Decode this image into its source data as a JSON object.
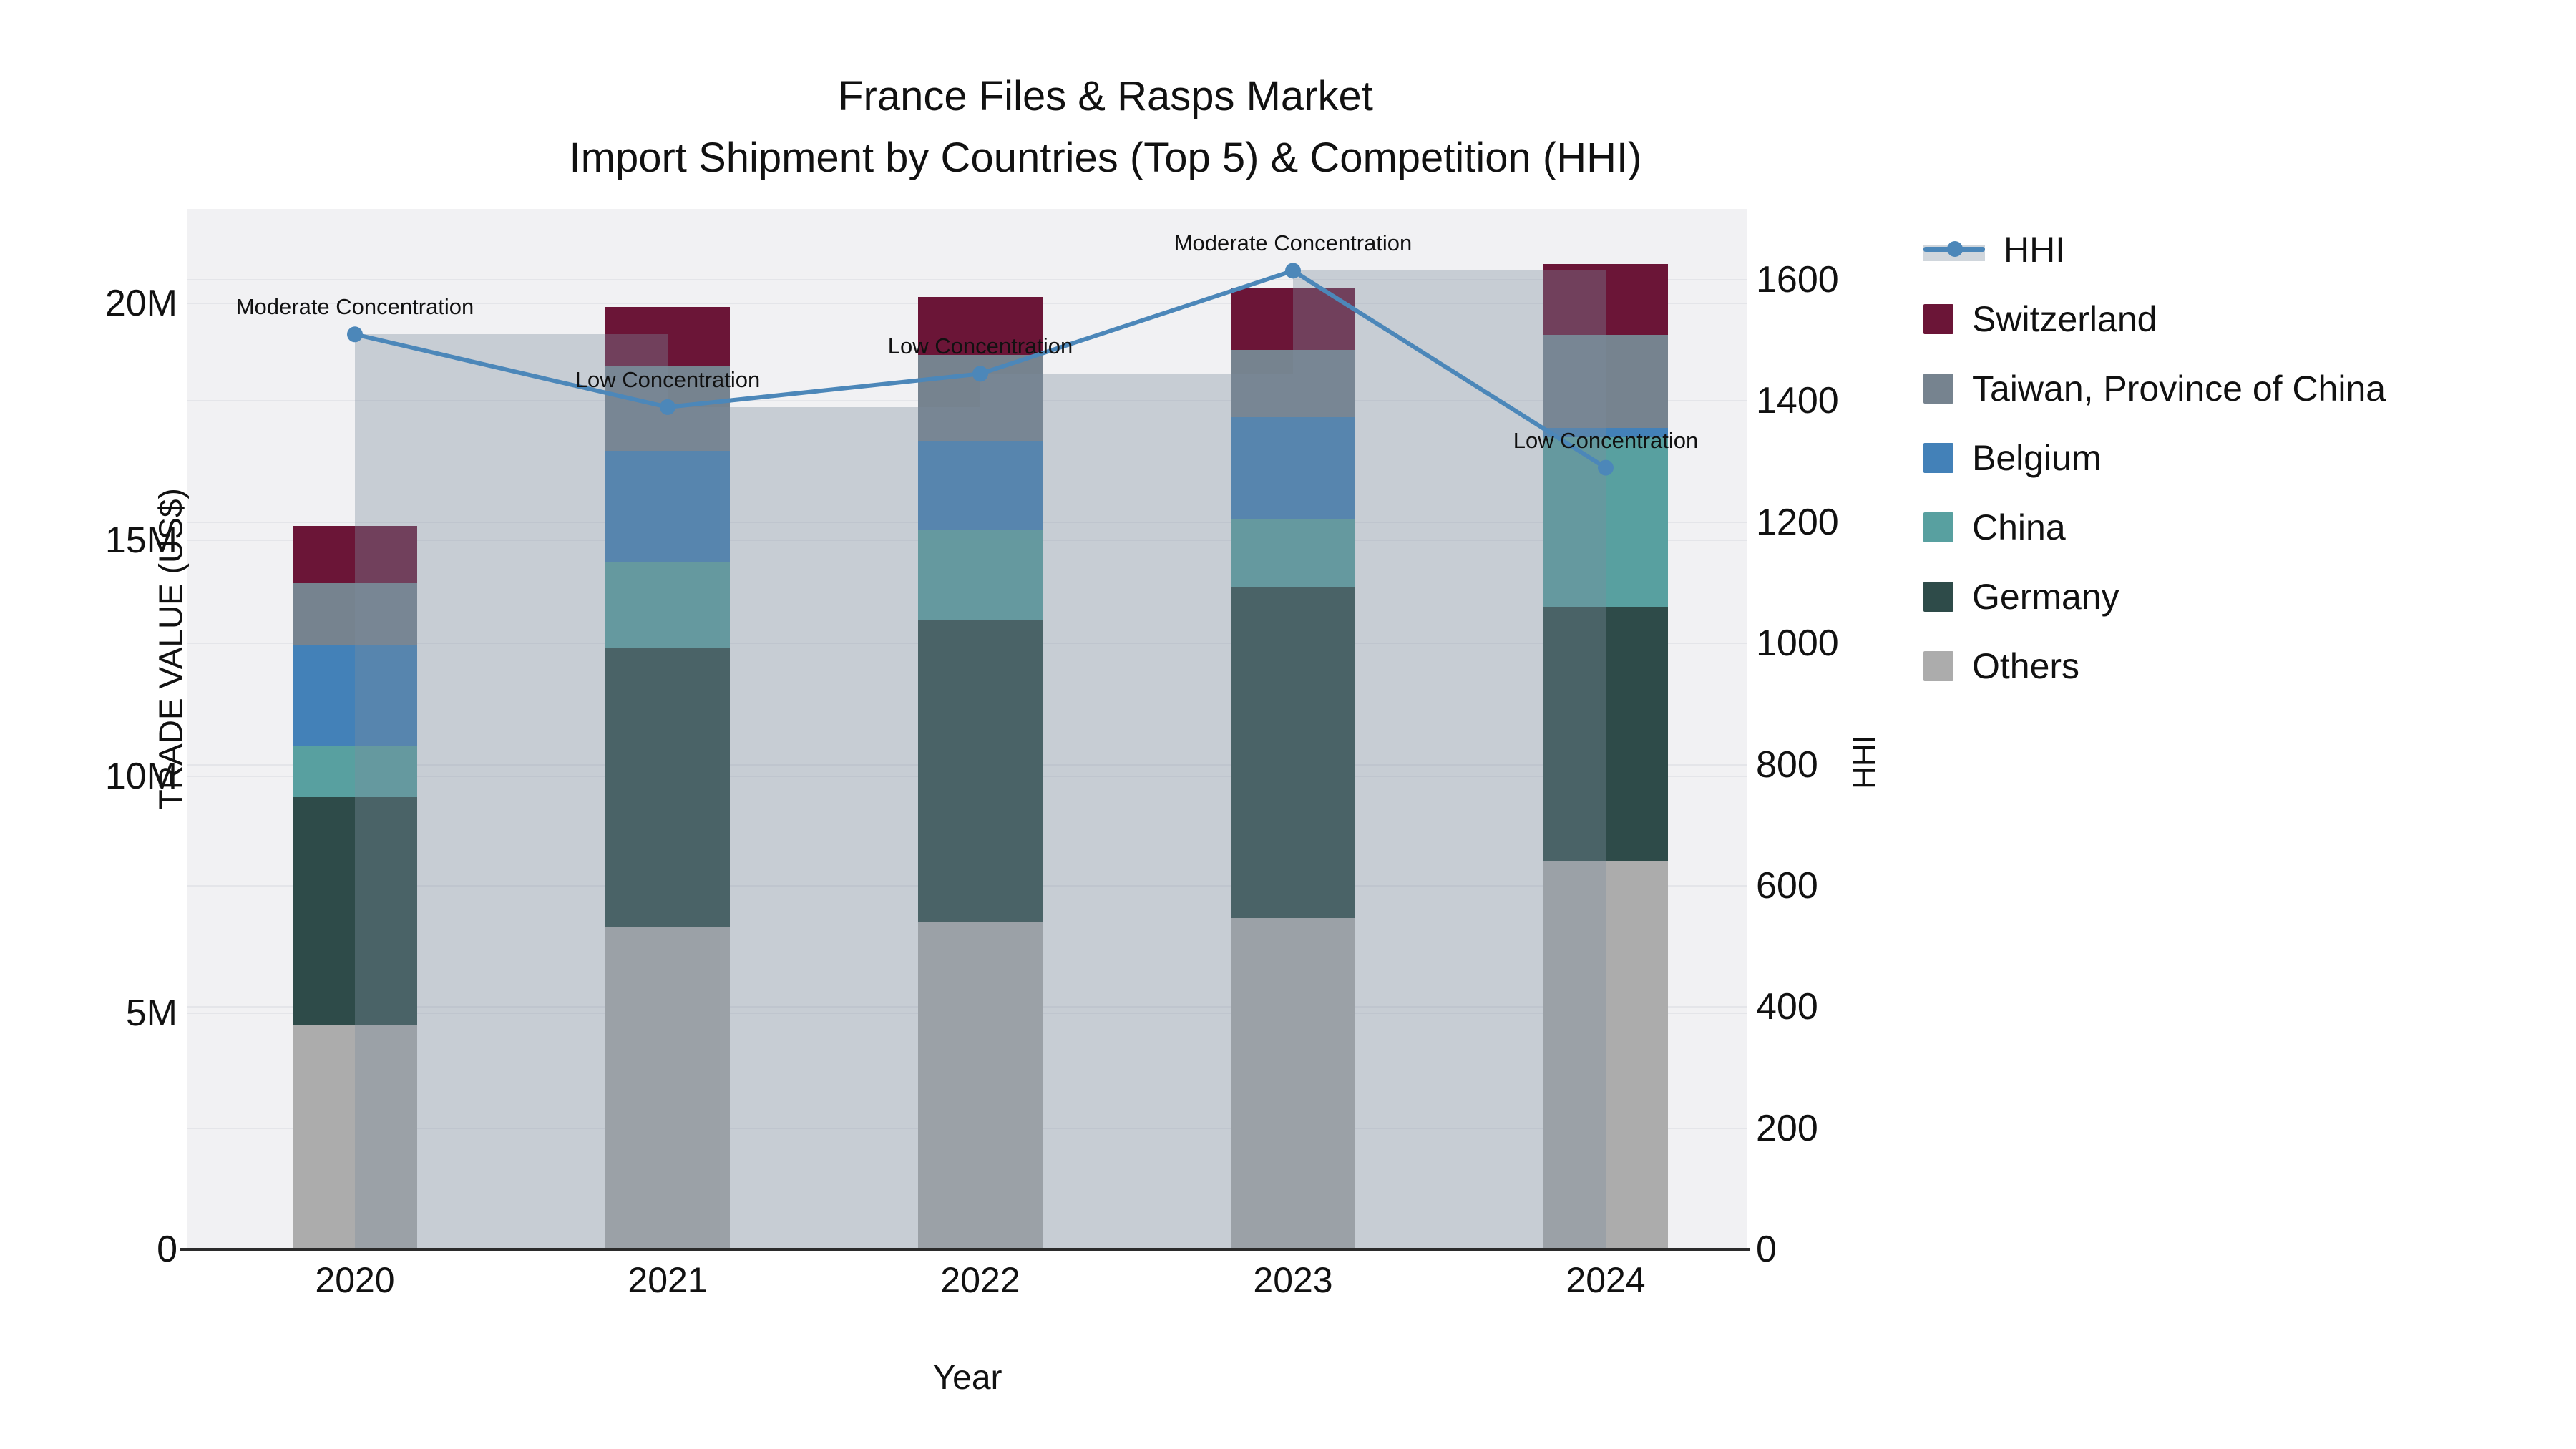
{
  "title": {
    "line1": "France Files & Rasps Market",
    "line2": "Import Shipment by Countries (Top 5) & Competition (HHI)"
  },
  "axes": {
    "left_label": "TRADE VALUE (US$)",
    "right_label": "HHI",
    "x_label": "Year",
    "left_ticks": [
      {
        "value": 0,
        "label": "0"
      },
      {
        "value": 5,
        "label": "5M"
      },
      {
        "value": 10,
        "label": "10M"
      },
      {
        "value": 15,
        "label": "15M"
      },
      {
        "value": 20,
        "label": "20M"
      }
    ],
    "right_ticks": [
      {
        "value": 0,
        "label": "0"
      },
      {
        "value": 200,
        "label": "200"
      },
      {
        "value": 400,
        "label": "400"
      },
      {
        "value": 600,
        "label": "600"
      },
      {
        "value": 800,
        "label": "800"
      },
      {
        "value": 1000,
        "label": "1000"
      },
      {
        "value": 1200,
        "label": "1200"
      },
      {
        "value": 1400,
        "label": "1400"
      },
      {
        "value": 1600,
        "label": "1600"
      }
    ]
  },
  "legend": {
    "items": [
      {
        "label": "HHI",
        "color": "#4c87b9",
        "kind": "line"
      },
      {
        "label": "Switzerland",
        "color": "#6b1537",
        "kind": "swatch"
      },
      {
        "label": "Taiwan, Province of China",
        "color": "#76838f",
        "kind": "swatch"
      },
      {
        "label": "Belgium",
        "color": "#4381b8",
        "kind": "swatch"
      },
      {
        "label": "China",
        "color": "#58a0a0",
        "kind": "swatch"
      },
      {
        "label": "Germany",
        "color": "#2e4b49",
        "kind": "swatch"
      },
      {
        "label": "Others",
        "color": "#acacac",
        "kind": "swatch"
      }
    ]
  },
  "chart_data": {
    "type": "bar",
    "subtype": "stacked-bars-with-step-area-line-combo",
    "unit": "million US$",
    "categories": [
      "2020",
      "2021",
      "2022",
      "2023",
      "2024"
    ],
    "series": [
      {
        "name": "Switzerland",
        "values": [
          1.21,
          1.25,
          1.23,
          1.31,
          1.5
        ]
      },
      {
        "name": "Taiwan, Province of China",
        "values": [
          1.31,
          1.8,
          1.82,
          1.43,
          1.96
        ]
      },
      {
        "name": "Belgium",
        "values": [
          2.12,
          2.35,
          1.87,
          2.16,
          0.2
        ]
      },
      {
        "name": "China",
        "values": [
          1.08,
          1.8,
          1.91,
          1.43,
          3.59
        ]
      },
      {
        "name": "Germany",
        "values": [
          4.82,
          5.9,
          6.39,
          6.99,
          5.36
        ]
      },
      {
        "name": "Others",
        "values": [
          4.75,
          6.83,
          6.92,
          7.01,
          8.22
        ]
      }
    ],
    "stack_order_bottom_to_top": [
      "Others",
      "Germany",
      "China",
      "Belgium",
      "Taiwan, Province of China",
      "Switzerland"
    ],
    "totals": [
      15.29,
      19.93,
      20.14,
      20.33,
      20.83
    ],
    "line_series": {
      "name": "HHI",
      "axis": "right",
      "values": [
        1510,
        1390,
        1445,
        1615,
        1290
      ],
      "step_fill": true
    },
    "annotations": [
      {
        "category": "2020",
        "text": "Moderate Concentration"
      },
      {
        "category": "2021",
        "text": "Low Concentration"
      },
      {
        "category": "2022",
        "text": "Low Concentration"
      },
      {
        "category": "2023",
        "text": "Moderate Concentration"
      },
      {
        "category": "2024",
        "text": "Low Concentration"
      }
    ],
    "title": "France Files & Rasps Market — Import Shipment by Countries (Top 5) & Competition (HHI)",
    "xlabel": "Year",
    "ylabel_left": "TRADE VALUE (US$)",
    "ylabel_right": "HHI",
    "ylim_left_millions": [
      0,
      22
    ],
    "ylim_right": [
      0,
      1717
    ],
    "grid": true,
    "legend_position": "right",
    "colors": {
      "Switzerland": "#6b1537",
      "Taiwan, Province of China": "#76838f",
      "Belgium": "#4381b8",
      "China": "#58a0a0",
      "Germany": "#2e4b49",
      "Others": "#acacac",
      "HHI_line": "#4c87b9",
      "HHI_step_fill": "rgba(125,141,158,0.36)",
      "plot_background": "#f1f1f3",
      "gridline": "#e4e5e9"
    }
  }
}
